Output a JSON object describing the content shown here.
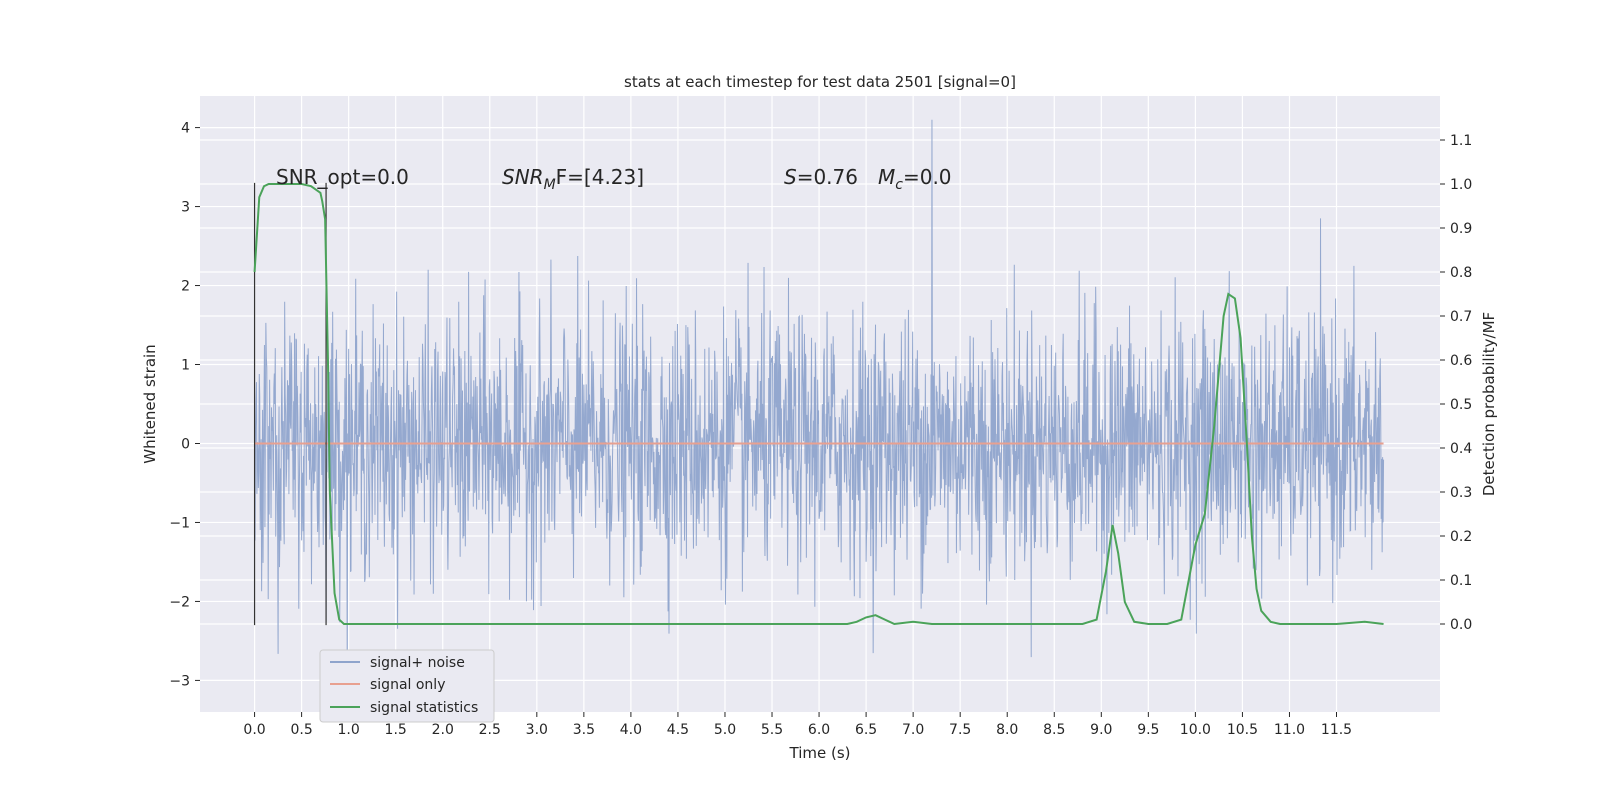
{
  "chart_data": {
    "type": "line",
    "title": "stats at each timestep for test data 2501 [signal=0]",
    "xlabel": "Time (s)",
    "ylabel": "Whitened strain",
    "ylabel_right": "Detection probability/MF",
    "xlim": [
      -0.58,
      12.6
    ],
    "ylim": [
      -3.4,
      4.4
    ],
    "ylim_right": [
      -0.2,
      1.2
    ],
    "x_ticks": [
      "0.0",
      "0.5",
      "1.0",
      "1.5",
      "2.0",
      "2.5",
      "3.0",
      "3.5",
      "4.0",
      "4.5",
      "5.0",
      "5.5",
      "6.0",
      "6.5",
      "7.0",
      "7.5",
      "8.0",
      "8.5",
      "9.0",
      "9.5",
      "10.0",
      "10.5",
      "11.0",
      "11.5"
    ],
    "y_ticks": [
      "−3",
      "−2",
      "−1",
      "0",
      "1",
      "2",
      "3",
      "4"
    ],
    "y_ticks_right": [
      "0.0",
      "0.1",
      "0.2",
      "0.3",
      "0.4",
      "0.5",
      "0.6",
      "0.7",
      "0.8",
      "0.9",
      "1.0",
      "1.1"
    ],
    "grid": true,
    "legend_position": "lower-left",
    "annotations": {
      "snr_opt": "SNR_opt=0.0",
      "snr_mf_main": "SNR",
      "snr_mf_sub": "M",
      "snr_mf_rest": "F=[4.23]",
      "s_main": "S",
      "s_rest": "=0.76",
      "mc_main": "M",
      "mc_sub": "c",
      "mc_rest": "=0.0"
    },
    "markers": {
      "vertical_lines_x": [
        0.0,
        0.76
      ],
      "vertical_lines_y": [
        -2.3,
        3.3
      ]
    },
    "series": [
      {
        "name": "signal+ noise",
        "color": "#8fa4cc",
        "axis": "left",
        "x_range": [
          0.0,
          12.0
        ],
        "noise_std": 0.8,
        "peak_y": 4.1,
        "peak_x": 7.2
      },
      {
        "name": "signal only",
        "color": "#e8a090",
        "axis": "left",
        "x": [
          0.0,
          12.0
        ],
        "y": [
          0.0,
          0.0
        ]
      },
      {
        "name": "signal statistics",
        "color": "#4ba35a",
        "axis": "right",
        "x": [
          0.0,
          0.05,
          0.1,
          0.15,
          0.2,
          0.3,
          0.4,
          0.5,
          0.6,
          0.7,
          0.72,
          0.75,
          0.78,
          0.8,
          0.85,
          0.9,
          0.95,
          1.0,
          1.5,
          2.0,
          3.0,
          3.5,
          4.0,
          5.0,
          6.0,
          6.3,
          6.4,
          6.5,
          6.6,
          6.7,
          6.8,
          7.0,
          7.2,
          7.5,
          8.0,
          8.5,
          8.8,
          8.95,
          9.05,
          9.12,
          9.18,
          9.25,
          9.35,
          9.5,
          9.7,
          9.85,
          10.0,
          10.1,
          10.2,
          10.3,
          10.35,
          10.42,
          10.48,
          10.55,
          10.6,
          10.65,
          10.7,
          10.8,
          10.9,
          11.0,
          11.5,
          11.8,
          12.0
        ],
        "y": [
          0.8,
          0.97,
          0.995,
          1.0,
          1.0,
          1.0,
          1.0,
          1.0,
          0.995,
          0.98,
          0.96,
          0.92,
          0.6,
          0.3,
          0.07,
          0.01,
          0.0,
          0.0,
          0.0,
          0.0,
          0.0,
          0.0,
          0.0,
          0.0,
          0.0,
          0.0,
          0.005,
          0.015,
          0.02,
          0.01,
          0.0,
          0.005,
          0.0,
          0.0,
          0.0,
          0.0,
          0.0,
          0.01,
          0.12,
          0.225,
          0.16,
          0.05,
          0.005,
          0.0,
          0.0,
          0.01,
          0.18,
          0.25,
          0.45,
          0.7,
          0.75,
          0.74,
          0.65,
          0.4,
          0.2,
          0.08,
          0.03,
          0.005,
          0.0,
          0.0,
          0.0,
          0.005,
          0.0
        ]
      }
    ]
  }
}
